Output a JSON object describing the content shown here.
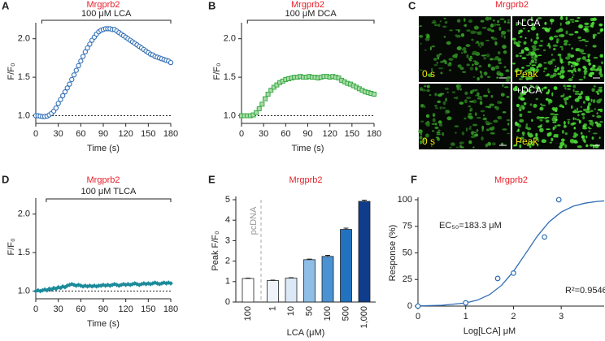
{
  "chart_data": [
    {
      "type": "line",
      "panel": "A",
      "title": "Mrgprb2",
      "annotation": "100 μM LCA",
      "bracket": [
        8,
        180
      ],
      "xlabel": "Time (s)",
      "ylabel": "F/F₀",
      "marker": "circle",
      "color": "#2f6db5",
      "reference_line": 1,
      "x": [
        0,
        3,
        6,
        9,
        12,
        15,
        18,
        21,
        24,
        27,
        30,
        33,
        36,
        39,
        42,
        45,
        48,
        51,
        54,
        57,
        60,
        63,
        66,
        69,
        72,
        75,
        78,
        81,
        84,
        87,
        90,
        93,
        96,
        99,
        102,
        105,
        108,
        111,
        114,
        117,
        120,
        123,
        126,
        129,
        132,
        135,
        138,
        141,
        144,
        147,
        150,
        153,
        156,
        159,
        162,
        165,
        168,
        171,
        174,
        177,
        180
      ],
      "values": [
        1.0,
        1.0,
        0.995,
        0.99,
        0.99,
        0.995,
        1.01,
        1.03,
        1.06,
        1.1,
        1.16,
        1.21,
        1.26,
        1.31,
        1.36,
        1.41,
        1.47,
        1.53,
        1.59,
        1.65,
        1.71,
        1.77,
        1.83,
        1.88,
        1.93,
        1.98,
        2.02,
        2.06,
        2.09,
        2.11,
        2.12,
        2.13,
        2.13,
        2.13,
        2.12,
        2.12,
        2.1,
        2.08,
        2.06,
        2.04,
        2.02,
        2.0,
        1.98,
        1.96,
        1.94,
        1.92,
        1.9,
        1.88,
        1.86,
        1.84,
        1.82,
        1.8,
        1.79,
        1.77,
        1.76,
        1.75,
        1.74,
        1.73,
        1.72,
        1.71,
        1.69
      ],
      "xlim": [
        0,
        180
      ],
      "xticks": [
        0,
        30,
        60,
        90,
        120,
        150,
        180
      ],
      "ylim": [
        0.9,
        2.25
      ],
      "yticks": [
        {
          "value": 1,
          "label": "1.0"
        },
        {
          "value": 1.5,
          "label": "1.5"
        },
        {
          "value": 2,
          "label": "2.0"
        }
      ]
    },
    {
      "type": "line",
      "panel": "B",
      "title": "Mrgprb2",
      "annotation": "100 μM DCA",
      "bracket": [
        8,
        180
      ],
      "xlabel": "Time (s)",
      "ylabel": "F/F₀",
      "marker": "square",
      "color": "#3aaa45",
      "reference_line": 1,
      "x": [
        0,
        4,
        8,
        12,
        16,
        20,
        24,
        28,
        32,
        36,
        40,
        44,
        48,
        52,
        56,
        60,
        64,
        68,
        72,
        76,
        80,
        84,
        88,
        92,
        96,
        100,
        104,
        108,
        112,
        116,
        120,
        124,
        128,
        132,
        136,
        140,
        144,
        148,
        152,
        156,
        160,
        164,
        168,
        172,
        176,
        180
      ],
      "values": [
        1.0,
        1.0,
        1.0,
        1.0,
        1.01,
        1.04,
        1.09,
        1.15,
        1.22,
        1.28,
        1.33,
        1.37,
        1.4,
        1.43,
        1.45,
        1.47,
        1.48,
        1.49,
        1.5,
        1.5,
        1.51,
        1.5,
        1.5,
        1.51,
        1.5,
        1.5,
        1.49,
        1.5,
        1.51,
        1.51,
        1.5,
        1.51,
        1.5,
        1.49,
        1.46,
        1.44,
        1.42,
        1.41,
        1.39,
        1.37,
        1.35,
        1.33,
        1.31,
        1.3,
        1.29,
        1.28
      ],
      "xlim": [
        0,
        180
      ],
      "xticks": [
        0,
        30,
        60,
        90,
        120,
        150,
        180
      ],
      "ylim": [
        0.9,
        2.25
      ],
      "yticks": [
        {
          "value": 1,
          "label": "1.0"
        },
        {
          "value": 1.5,
          "label": "1.5"
        },
        {
          "value": 2,
          "label": "2.0"
        }
      ]
    },
    {
      "type": "image",
      "panel": "C",
      "title": "Mrgprb2",
      "tiles": [
        {
          "time": "0 s"
        },
        {
          "treatment": "+LCA",
          "time": "Peak"
        },
        {
          "time": "0 s"
        },
        {
          "treatment": "+DCA",
          "time": "Peak"
        }
      ]
    },
    {
      "type": "line",
      "panel": "D",
      "title": "Mrgprb2",
      "annotation": "100 μM TLCA",
      "bracket": [
        14,
        180
      ],
      "xlabel": "Time (s)",
      "ylabel": "F/F₀",
      "marker": "diamond",
      "color": "#1b8a9a",
      "reference_line": 1,
      "x": [
        0,
        3,
        6,
        9,
        12,
        15,
        18,
        21,
        24,
        27,
        30,
        33,
        36,
        39,
        42,
        45,
        48,
        51,
        54,
        57,
        60,
        63,
        66,
        69,
        72,
        75,
        78,
        81,
        84,
        87,
        90,
        93,
        96,
        99,
        102,
        105,
        108,
        111,
        114,
        117,
        120,
        123,
        126,
        129,
        132,
        135,
        138,
        141,
        144,
        147,
        150,
        153,
        156,
        159,
        162,
        165,
        168,
        171,
        174,
        177,
        180
      ],
      "values": [
        1.0,
        1.01,
        1.0,
        1.01,
        1.02,
        1.01,
        1.03,
        1.02,
        1.04,
        1.03,
        1.05,
        1.04,
        1.06,
        1.05,
        1.07,
        1.08,
        1.09,
        1.08,
        1.07,
        1.08,
        1.07,
        1.06,
        1.07,
        1.06,
        1.07,
        1.06,
        1.07,
        1.06,
        1.07,
        1.07,
        1.08,
        1.07,
        1.08,
        1.07,
        1.08,
        1.09,
        1.08,
        1.07,
        1.08,
        1.09,
        1.08,
        1.09,
        1.08,
        1.09,
        1.1,
        1.09,
        1.08,
        1.09,
        1.1,
        1.09,
        1.1,
        1.09,
        1.1,
        1.11,
        1.1,
        1.09,
        1.1,
        1.11,
        1.1,
        1.11,
        1.1
      ],
      "xlim": [
        0,
        180
      ],
      "xticks": [
        0,
        30,
        60,
        90,
        120,
        150,
        180
      ],
      "ylim": [
        0.9,
        2.25
      ],
      "yticks": [
        {
          "value": 1,
          "label": "1.0"
        },
        {
          "value": 1.5,
          "label": "1.5"
        },
        {
          "value": 2,
          "label": "2.0"
        }
      ]
    },
    {
      "type": "bar",
      "panel": "E",
      "title": "Mrgprb2",
      "xlabel": "LCA (μM)",
      "ylabel": "Peak F/F₀",
      "group_label": "pcDNA",
      "categories": [
        "100",
        "1",
        "10",
        "50",
        "100",
        "500",
        "1,000"
      ],
      "values": [
        1.15,
        1.05,
        1.17,
        2.07,
        2.23,
        3.55,
        4.92
      ],
      "errors": [
        0.02,
        0.02,
        0.02,
        0.03,
        0.05,
        0.06,
        0.06
      ],
      "colors": [
        "#ffffff",
        "#eef3f9",
        "#dbe8f5",
        "#8ebde6",
        "#4b92d2",
        "#2272bf",
        "#0f3d8c"
      ],
      "ylim": [
        0,
        5
      ],
      "yticks": [
        0,
        1,
        2,
        3,
        4,
        5
      ]
    },
    {
      "type": "scatter",
      "panel": "F",
      "title": "Mrgprb2",
      "xlabel": "Log[LCA] μM",
      "ylabel": "Response (%)",
      "annotations": [
        "EC₅₀=183.3 μM",
        "R²=0.9546"
      ],
      "color": "#2f6db5",
      "x": [
        0,
        1,
        1.67,
        2,
        2.65,
        2.95
      ],
      "values": [
        0,
        3,
        26,
        31,
        65,
        100
      ],
      "fit": {
        "x": [
          0,
          0.5,
          1,
          1.25,
          1.5,
          1.75,
          2,
          2.25,
          2.5,
          2.75,
          3,
          3.25,
          3.5,
          3.75,
          3.9
        ],
        "values": [
          0.19,
          0.76,
          2.96,
          5.7,
          10.8,
          19.5,
          32.6,
          49.1,
          65.8,
          79.3,
          88.4,
          93.9,
          96.8,
          98.4,
          98.9
        ]
      },
      "xlim": [
        0,
        3.9
      ],
      "xticks": [
        0,
        1,
        2,
        3
      ],
      "ylim": [
        0,
        100
      ],
      "yticks": [
        0,
        25,
        50,
        75,
        100
      ]
    }
  ]
}
